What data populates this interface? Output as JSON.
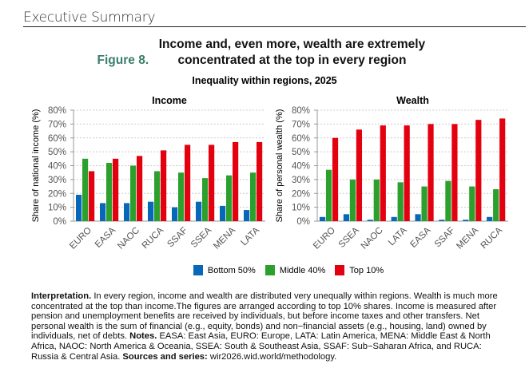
{
  "header": {
    "section": "Executive Summary"
  },
  "figure": {
    "number": "Figure 8.",
    "title": "Income and, even more, wealth are extremely concentrated at the top in every region",
    "subtitle": "Inequality within regions, 2025"
  },
  "legend": [
    {
      "label": "Bottom 50%",
      "color": "#0868b8"
    },
    {
      "label": "Middle 40%",
      "color": "#2ca02c"
    },
    {
      "label": "Top 10%",
      "color": "#e3000f"
    }
  ],
  "chart_data": [
    {
      "type": "bar",
      "title": "Income",
      "ylabel": "Share of national income (%)",
      "ylim": [
        0,
        80
      ],
      "yticks": [
        "0%",
        "10%",
        "20%",
        "30%",
        "40%",
        "50%",
        "60%",
        "70%",
        "80%"
      ],
      "grid": true,
      "categories": [
        "EURO",
        "EASA",
        "NAOC",
        "RUCA",
        "SSAF",
        "SSEA",
        "MENA",
        "LATA"
      ],
      "series": [
        {
          "name": "Bottom 50%",
          "values": [
            19,
            13,
            13,
            14,
            10,
            14,
            11,
            8
          ]
        },
        {
          "name": "Middle 40%",
          "values": [
            45,
            42,
            40,
            36,
            35,
            31,
            33,
            35
          ]
        },
        {
          "name": "Top 10%",
          "values": [
            36,
            45,
            47,
            51,
            55,
            55,
            57,
            57
          ]
        }
      ]
    },
    {
      "type": "bar",
      "title": "Wealth",
      "ylabel": "Share of personal wealth (%)",
      "ylim": [
        0,
        80
      ],
      "yticks": [
        "0%",
        "10%",
        "20%",
        "30%",
        "40%",
        "50%",
        "60%",
        "70%",
        "80%"
      ],
      "grid": true,
      "categories": [
        "EURO",
        "SSEA",
        "NAOC",
        "LATA",
        "EASA",
        "SSAF",
        "MENA",
        "RUCA"
      ],
      "series": [
        {
          "name": "Bottom 50%",
          "values": [
            3,
            5,
            1,
            3,
            5,
            1,
            1,
            3
          ]
        },
        {
          "name": "Middle 40%",
          "values": [
            37,
            30,
            30,
            28,
            25,
            29,
            25,
            23
          ]
        },
        {
          "name": "Top 10%",
          "values": [
            60,
            66,
            69,
            69,
            70,
            70,
            73,
            74
          ]
        }
      ]
    }
  ],
  "interpretation": {
    "label1": "Interpretation.",
    "text1": " In every region, income and wealth are distributed very unequally within regions. Wealth is much more concentrated at the top than income.The figures are arranged according to top 10% shares. Income is measured after pension and unemployment benefits are received by individuals, but before income taxes and other transfers. Net personal wealth is the sum of financial (e.g., equity, bonds) and non−financial assets (e.g., housing, land) owned by individuals, net of debts. ",
    "label2": "Notes.",
    "text2": " EASA: East Asia, EURO: Europe, LATA: Latin America, MENA: Middle East & North Africa, NAOC: North America & Oceania, SSEA: South & Southeast Asia, SSAF: Sub−Saharan Africa, and RUCA: Russia & Central Asia. ",
    "label3": "Sources and series:",
    "text3": " wir2026.wid.world/methodology."
  }
}
